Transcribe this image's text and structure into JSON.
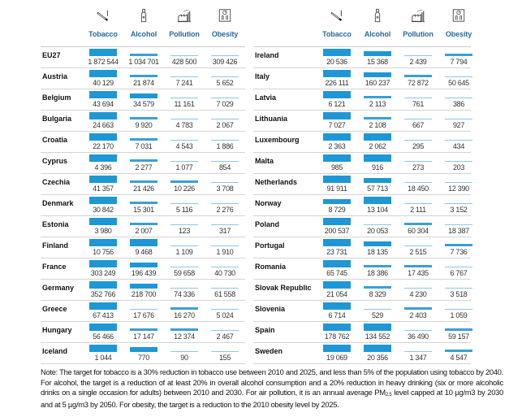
{
  "columns": [
    {
      "key": "tobacco",
      "label": "Tobacco",
      "icon": "cigarette-icon"
    },
    {
      "key": "alcohol",
      "label": "Alcohol",
      "icon": "bottle-icon"
    },
    {
      "key": "pollution",
      "label": "Pollution",
      "icon": "factory-icon"
    },
    {
      "key": "obesity",
      "label": "Obesity",
      "icon": "scale-icon"
    }
  ],
  "colors": {
    "bar_strong": "#1e97d6",
    "bar_medium": "#3a9fd8",
    "bar_light": "#8cc6ea",
    "header_text": "#2a6a99"
  },
  "left_rows": [
    {
      "country": "EU27",
      "values": [
        "1 872 544",
        "1 034 701",
        "428 500",
        "309 426"
      ],
      "levels": [
        4,
        2,
        1,
        1
      ]
    },
    {
      "country": "Austria",
      "values": [
        "40 129",
        "21 874",
        "7 241",
        "5 652"
      ],
      "levels": [
        4,
        2,
        1,
        1
      ]
    },
    {
      "country": "Belgium",
      "values": [
        "43 694",
        "34 579",
        "11 161",
        "7 029"
      ],
      "levels": [
        4,
        3,
        1,
        1
      ]
    },
    {
      "country": "Bulgaria",
      "values": [
        "24 663",
        "9 920",
        "4 783",
        "2 067"
      ],
      "levels": [
        4,
        2,
        1,
        1
      ]
    },
    {
      "country": "Croatia",
      "values": [
        "22 170",
        "7 031",
        "4 543",
        "1 886"
      ],
      "levels": [
        4,
        2,
        1,
        1
      ]
    },
    {
      "country": "Cyprus",
      "values": [
        "4 396",
        "2 277",
        "1 077",
        "854"
      ],
      "levels": [
        4,
        2,
        1,
        1
      ]
    },
    {
      "country": "Czechia",
      "values": [
        "41 357",
        "21 426",
        "10 226",
        "3 708"
      ],
      "levels": [
        4,
        2,
        2,
        1
      ]
    },
    {
      "country": "Denmark",
      "values": [
        "30 842",
        "15 301",
        "5 116",
        "2 276"
      ],
      "levels": [
        4,
        2,
        1,
        1
      ]
    },
    {
      "country": "Estonia",
      "values": [
        "3 980",
        "2 007",
        "123",
        "317"
      ],
      "levels": [
        4,
        2,
        1,
        1
      ]
    },
    {
      "country": "Finland",
      "values": [
        "10 756",
        "9 468",
        "1 109",
        "1 910"
      ],
      "levels": [
        4,
        4,
        1,
        1
      ]
    },
    {
      "country": "France",
      "values": [
        "303 249",
        "196 439",
        "59 658",
        "40 730"
      ],
      "levels": [
        4,
        3,
        1,
        1
      ]
    },
    {
      "country": "Germany",
      "values": [
        "352 766",
        "218 700",
        "74 336",
        "61 558"
      ],
      "levels": [
        4,
        3,
        1,
        1
      ]
    },
    {
      "country": "Greece",
      "values": [
        "67 413",
        "17 676",
        "16 270",
        "5 024"
      ],
      "levels": [
        4,
        1,
        2,
        1
      ]
    },
    {
      "country": "Hungary",
      "values": [
        "56 466",
        "17 147",
        "12 374",
        "2 467"
      ],
      "levels": [
        4,
        2,
        2,
        1
      ]
    },
    {
      "country": "Iceland",
      "values": [
        "1 044",
        "770",
        "90",
        "155"
      ],
      "levels": [
        4,
        3,
        1,
        1
      ]
    }
  ],
  "right_rows": [
    {
      "country": "Ireland",
      "values": [
        "20 536",
        "15 368",
        "2 439",
        "7 794"
      ],
      "levels": [
        4,
        3,
        1,
        2
      ]
    },
    {
      "country": "Italy",
      "values": [
        "226 111",
        "160 237",
        "72 872",
        "50 645"
      ],
      "levels": [
        4,
        3,
        2,
        1
      ]
    },
    {
      "country": "Latvia",
      "values": [
        "6 121",
        "2 113",
        "761",
        "386"
      ],
      "levels": [
        4,
        2,
        1,
        1
      ]
    },
    {
      "country": "Lithuania",
      "values": [
        "7 027",
        "2 108",
        "667",
        "927"
      ],
      "levels": [
        4,
        2,
        1,
        1
      ]
    },
    {
      "country": "Luxembourg",
      "values": [
        "2 363",
        "2 062",
        "295",
        "434"
      ],
      "levels": [
        4,
        4,
        1,
        1
      ]
    },
    {
      "country": "Malta",
      "values": [
        "985",
        "916",
        "273",
        "203"
      ],
      "levels": [
        4,
        4,
        1,
        1
      ]
    },
    {
      "country": "Netherlands",
      "values": [
        "91 911",
        "57 713",
        "18 450",
        "12 390"
      ],
      "levels": [
        4,
        3,
        1,
        1
      ]
    },
    {
      "country": "Norway",
      "values": [
        "8 729",
        "13 104",
        "2 111",
        "3 152"
      ],
      "levels": [
        3,
        4,
        1,
        1
      ]
    },
    {
      "country": "Poland",
      "values": [
        "200 537",
        "20 053",
        "60 304",
        "18 387"
      ],
      "levels": [
        4,
        1,
        2,
        1
      ]
    },
    {
      "country": "Portugal",
      "values": [
        "23 731",
        "18 135",
        "2 515",
        "7 736"
      ],
      "levels": [
        4,
        3,
        1,
        2
      ]
    },
    {
      "country": "Romania",
      "values": [
        "65 745",
        "18 386",
        "17 435",
        "6 767"
      ],
      "levels": [
        4,
        2,
        2,
        1
      ]
    },
    {
      "country": "Slovak Republic",
      "values": [
        "21 054",
        "8 329",
        "4 230",
        "3 518"
      ],
      "levels": [
        4,
        2,
        1,
        1
      ]
    },
    {
      "country": "Slovenia",
      "values": [
        "6 714",
        "529",
        "2 403",
        "1 059"
      ],
      "levels": [
        4,
        1,
        2,
        1
      ]
    },
    {
      "country": "Spain",
      "values": [
        "178 762",
        "134 552",
        "36 490",
        "59 157"
      ],
      "levels": [
        4,
        4,
        1,
        2
      ]
    },
    {
      "country": "Sweden",
      "values": [
        "19 069",
        "20 356",
        "1 347",
        "4 547"
      ],
      "levels": [
        4,
        4,
        1,
        2
      ]
    }
  ],
  "note": {
    "part1": "Note: The target for tobacco is a 30% reduction in tobacco use between 2010 and 2025, and less than 5% of the population using tobacco by 2040. For alcohol, the target is a reduction of at least 20% in overall alcohol consumption and a 20% reduction in heavy drinking (six or more alcoholic drinks on a single occasion for adults) between 2010 and 2030. For air pollution, it is an annual average PM",
    "sub": "2.5",
    "part2": " level capped at 10 µg/m3 by 2030 and at 5 µg/m3 by 2050. For obesity, the target is a reduction to the 2010 obesity level by 2025."
  }
}
